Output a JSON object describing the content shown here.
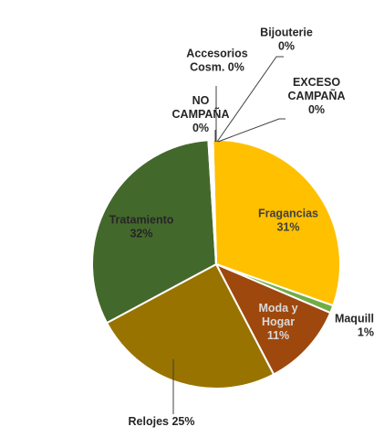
{
  "chart_data": {
    "type": "pie",
    "title": "",
    "slices": [
      {
        "label_lines": [
          "Fragancias",
          "31%"
        ],
        "value": 31,
        "color": "#FFC000",
        "text_color": "#404040",
        "placement": "inside"
      },
      {
        "label_lines": [
          "Maquill",
          "1%"
        ],
        "value": 1,
        "color": "#70AD47",
        "text_color": "#262626",
        "placement": "outside"
      },
      {
        "label_lines": [
          "Moda y",
          "Hogar",
          "11%"
        ],
        "value": 11,
        "color": "#9E480E",
        "text_color": "#D9D9D9",
        "placement": "inside"
      },
      {
        "label_lines": [
          "Relojes 25%"
        ],
        "value": 25,
        "color": "#997300",
        "text_color": "#262626",
        "placement": "outside"
      },
      {
        "label_lines": [
          "Tratamiento",
          "32%"
        ],
        "value": 32,
        "color": "#43682B",
        "text_color": "#262626",
        "placement": "inside"
      },
      {
        "label_lines": [
          "NO",
          "CAMPAÑA",
          "0%"
        ],
        "value": 0.15,
        "color": "#FFC000",
        "text_color": "#262626",
        "placement": "outside"
      },
      {
        "label_lines": [
          "Accesorios",
          "Cosm. 0%"
        ],
        "value": 0.15,
        "color": "#4472C4",
        "text_color": "#262626",
        "placement": "outside"
      },
      {
        "label_lines": [
          "Bijouterie",
          "0%"
        ],
        "value": 0.15,
        "color": "#A5A5A5",
        "text_color": "#262626",
        "placement": "outside"
      },
      {
        "label_lines": [
          "EXCESO",
          "CAMPAÑA",
          "0%"
        ],
        "value": 0.15,
        "color": "#5B9BD5",
        "text_color": "#262626",
        "placement": "outside"
      }
    ],
    "legend": "none"
  }
}
